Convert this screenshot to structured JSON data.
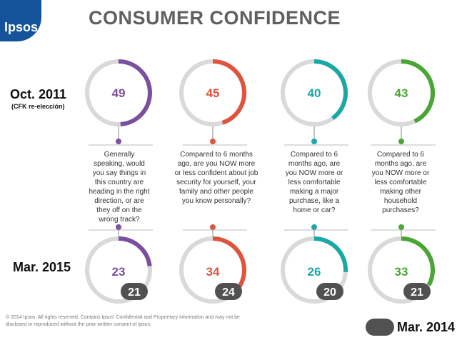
{
  "header": {
    "brand": "Ipsos",
    "title": "CONSUMER CONFIDENCE"
  },
  "periods": {
    "first": "Oct. 2011",
    "first_note": "(CFK re-elección)",
    "second": "Mar. 2015"
  },
  "legend": {
    "label": "Mar. 2014"
  },
  "footer": {
    "text": "© 2014 Ipsos. All rights reserved. Contains Ipsos' Confidential and Proprietary information and may not be disclosed or reproduced without the prior written consent of Ipsos."
  },
  "chart_data": {
    "type": "gauge",
    "scale_max": 100,
    "series": [
      {
        "name": "Oct. 2011",
        "values": [
          49,
          45,
          40,
          43
        ]
      },
      {
        "name": "Mar. 2015",
        "values": [
          23,
          34,
          26,
          33
        ]
      },
      {
        "name": "Mar. 2014",
        "values": [
          21,
          24,
          20,
          21
        ]
      }
    ],
    "questions": [
      {
        "text": "Generally speaking, would you say things in this country are heading in the right direction, or are they off on the wrong track?",
        "color": "#7b4f9d"
      },
      {
        "text": "Compared to 6 months ago, are you NOW more or less confident about job security for yourself, your family and other people you know personally?",
        "color": "#e0533c"
      },
      {
        "text": "Compared to 6 months ago, are you NOW more or less comfortable making a major purchase, like a home or car?",
        "color": "#1aa8a6"
      },
      {
        "text": "Compared to 6 months ago, are you NOW more or less comfortable making other household purchases?",
        "color": "#4aa634"
      }
    ]
  }
}
